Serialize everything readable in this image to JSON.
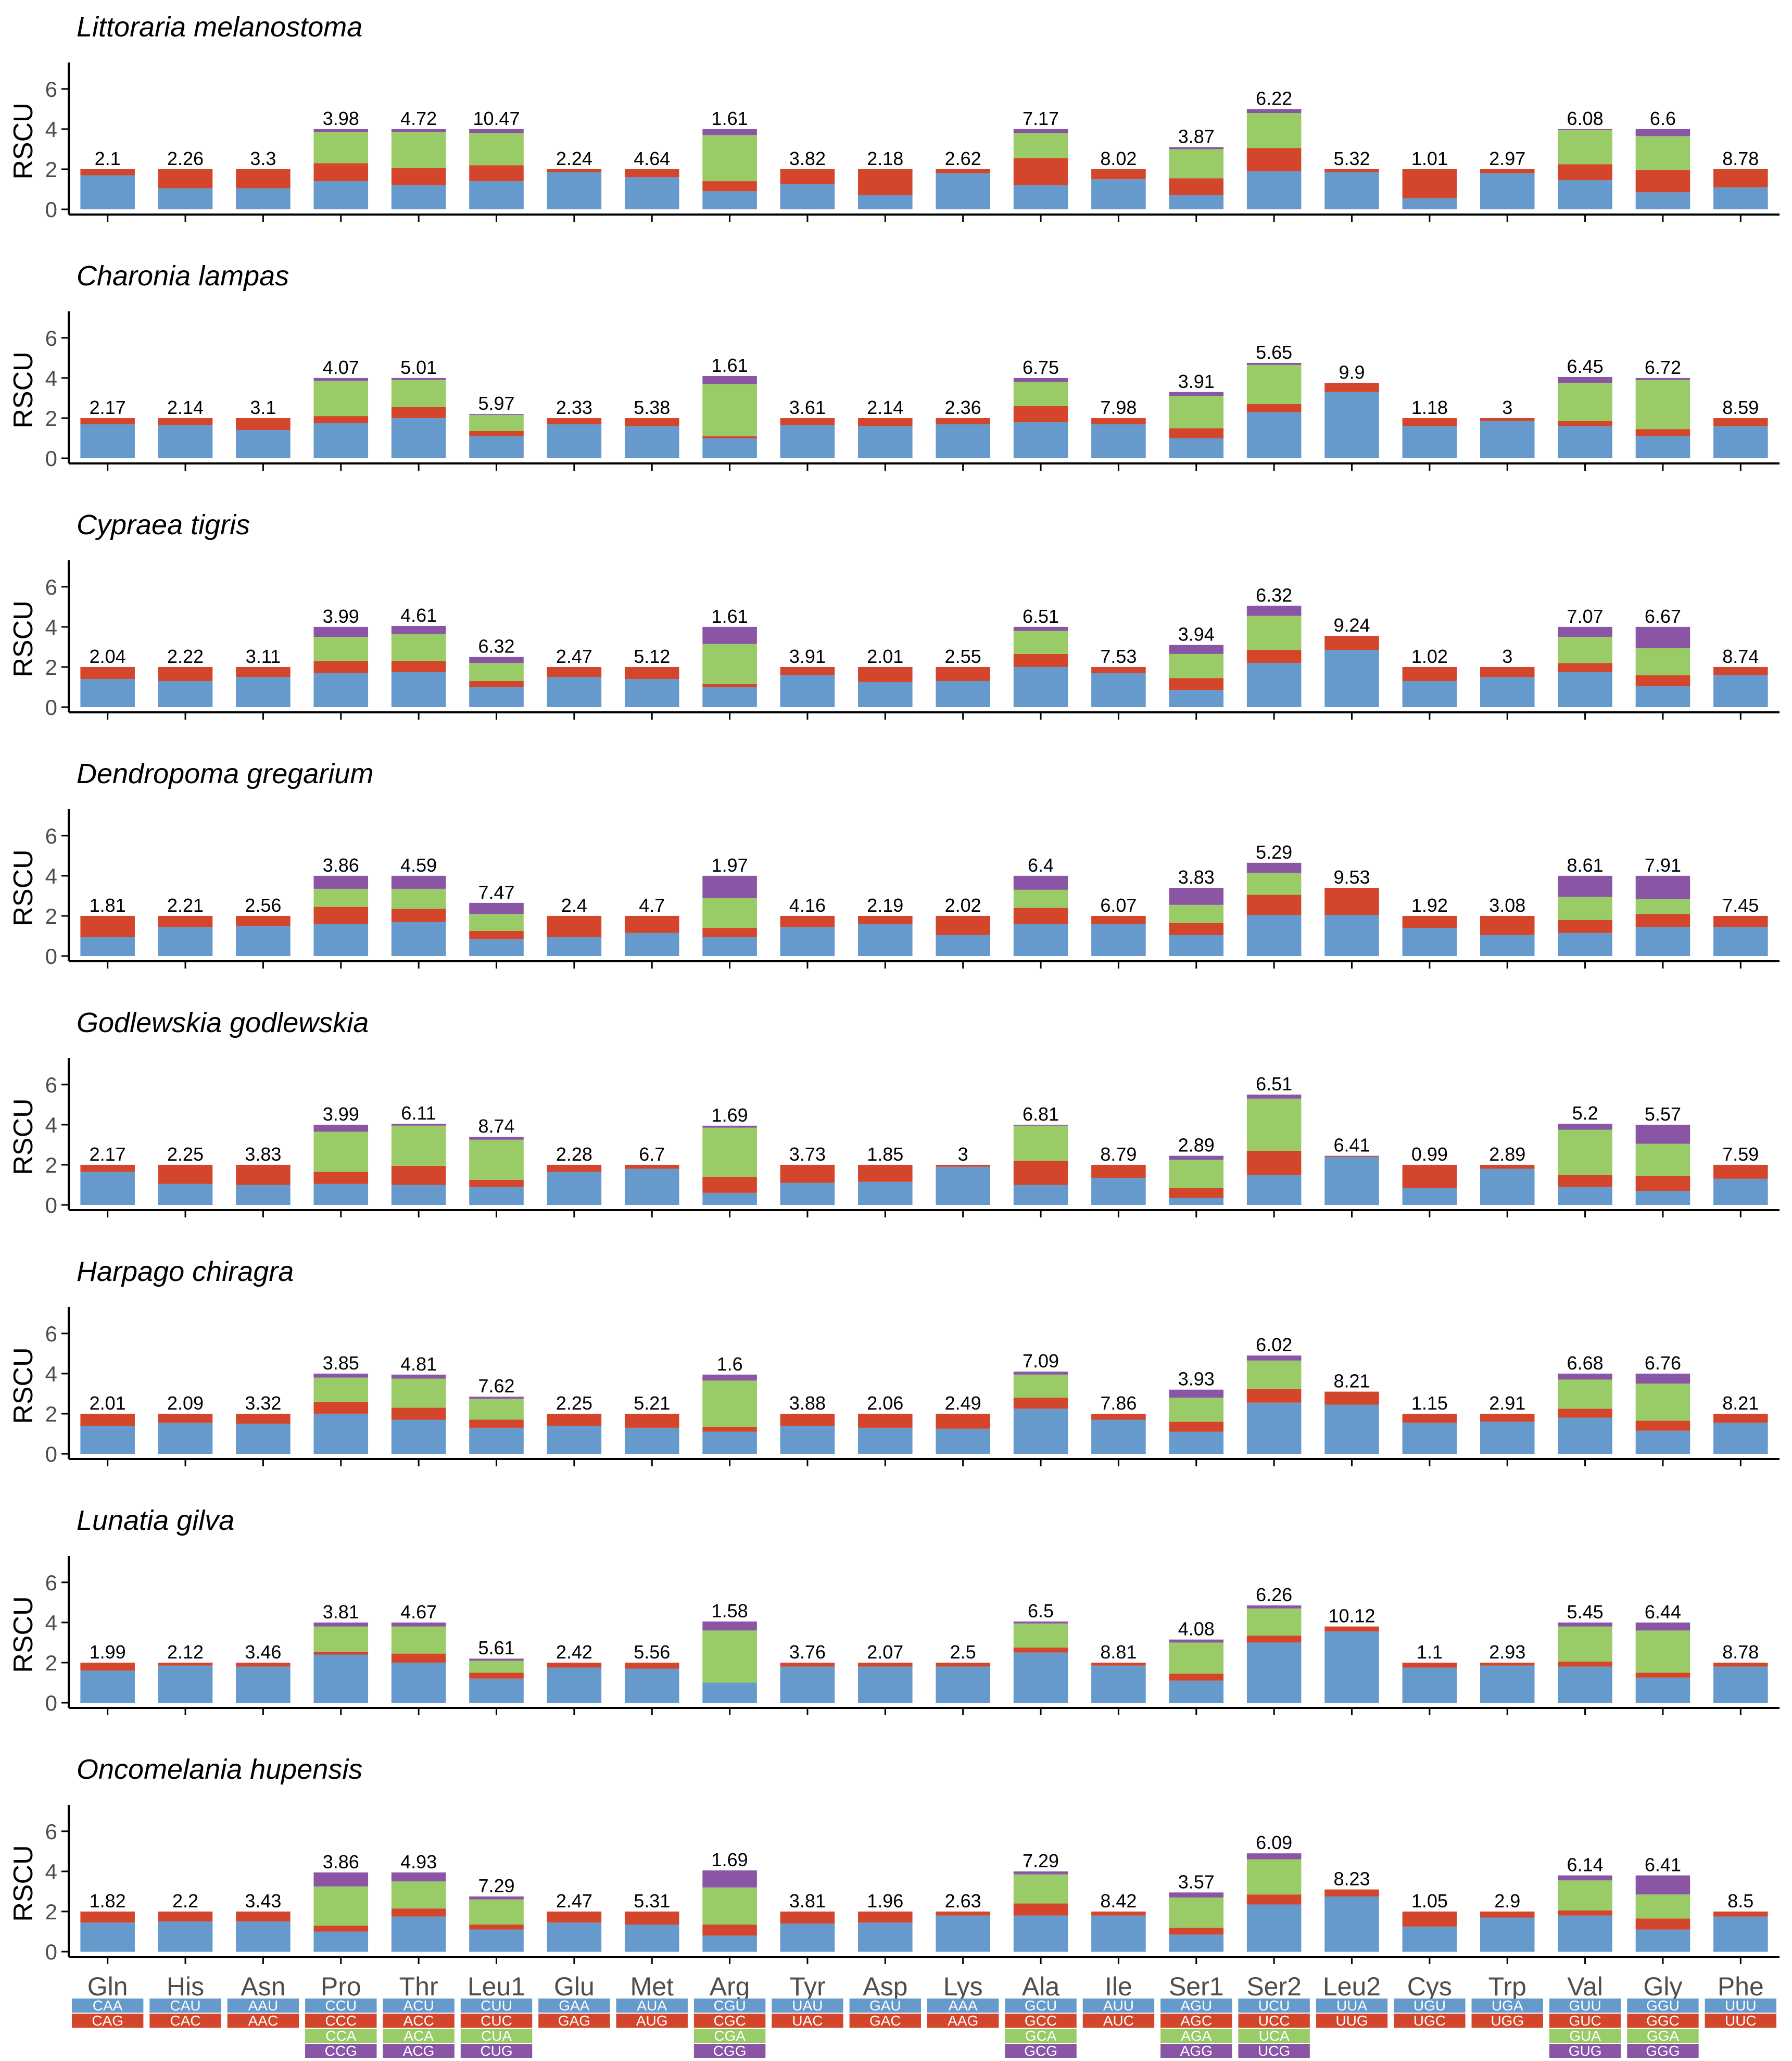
{
  "colors": {
    "codon1": "#6699cc",
    "codon2": "#d4462b",
    "codon3": "#99cc66",
    "codon4": "#8a55a5",
    "axis": "#000000",
    "text": "#000000",
    "codon_text": "#ffffff"
  },
  "chart_data": {
    "type": "bar",
    "stacked": true,
    "ylabel": "RSCU",
    "ylim": [
      0,
      6.8
    ],
    "yticks": [
      0,
      2,
      4,
      6
    ],
    "grid": false,
    "categories": [
      "Gln",
      "His",
      "Asn",
      "Pro",
      "Thr",
      "Leu1",
      "Glu",
      "Met",
      "Arg",
      "Tyr",
      "Asp",
      "Lys",
      "Ala",
      "Ile",
      "Ser1",
      "Ser2",
      "Leu2",
      "Cys",
      "Trp",
      "Val",
      "Gly",
      "Phe"
    ],
    "codons": [
      [
        "CAA",
        "CAG"
      ],
      [
        "CAU",
        "CAC"
      ],
      [
        "AAU",
        "AAC"
      ],
      [
        "CCU",
        "CCC",
        "CCA",
        "CCG"
      ],
      [
        "ACU",
        "ACC",
        "ACA",
        "ACG"
      ],
      [
        "CUU",
        "CUC",
        "CUA",
        "CUG"
      ],
      [
        "GAA",
        "GAG"
      ],
      [
        "AUA",
        "AUG"
      ],
      [
        "CGU",
        "CGC",
        "CGA",
        "CGG"
      ],
      [
        "UAU",
        "UAC"
      ],
      [
        "GAU",
        "GAC"
      ],
      [
        "AAA",
        "AAG"
      ],
      [
        "GCU",
        "GCC",
        "GCA",
        "GCG"
      ],
      [
        "AUU",
        "AUC"
      ],
      [
        "AGU",
        "AGC",
        "AGA",
        "AGG"
      ],
      [
        "UCU",
        "UCC",
        "UCA",
        "UCG"
      ],
      [
        "UUA",
        "UUG"
      ],
      [
        "UGU",
        "UGC"
      ],
      [
        "UGA",
        "UGG"
      ],
      [
        "GUU",
        "GUC",
        "GUA",
        "GUG"
      ],
      [
        "GGU",
        "GGC",
        "GGA",
        "GGG"
      ],
      [
        "UUU",
        "UUC"
      ]
    ],
    "panels": [
      {
        "species": "Littoraria melanostoma",
        "labels": [
          "2.1",
          "2.26",
          "3.3",
          "3.98",
          "4.72",
          "10.47",
          "2.24",
          "4.64",
          "1.61",
          "3.82",
          "2.18",
          "2.62",
          "7.17",
          "8.02",
          "3.87",
          "6.22",
          "5.32",
          "1.01",
          "2.97",
          "6.08",
          "6.6",
          "8.78"
        ],
        "stacks": [
          [
            1.7,
            0.3
          ],
          [
            1.05,
            0.95
          ],
          [
            1.05,
            0.95
          ],
          [
            1.4,
            0.9,
            1.55,
            0.15
          ],
          [
            1.2,
            0.85,
            1.8,
            0.15
          ],
          [
            1.4,
            0.8,
            1.6,
            0.2
          ],
          [
            1.85,
            0.15
          ],
          [
            1.6,
            0.4
          ],
          [
            0.9,
            0.5,
            2.3,
            0.3
          ],
          [
            1.25,
            0.75
          ],
          [
            0.7,
            1.3
          ],
          [
            1.8,
            0.2
          ],
          [
            1.2,
            1.35,
            1.25,
            0.2
          ],
          [
            1.5,
            0.5
          ],
          [
            0.7,
            0.85,
            1.45,
            0.1
          ],
          [
            1.9,
            1.15,
            1.75,
            0.2
          ],
          [
            1.85,
            0.15
          ],
          [
            0.55,
            1.45
          ],
          [
            1.8,
            0.2
          ],
          [
            1.45,
            0.8,
            1.7,
            0.05
          ],
          [
            0.85,
            1.1,
            1.7,
            0.35
          ],
          [
            1.1,
            0.9
          ]
        ]
      },
      {
        "species": "Charonia lampas",
        "labels": [
          "2.17",
          "2.14",
          "3.1",
          "4.07",
          "5.01",
          "5.97",
          "2.33",
          "5.38",
          "1.61",
          "3.61",
          "2.14",
          "2.36",
          "6.75",
          "7.98",
          "3.91",
          "5.65",
          "9.9",
          "1.18",
          "3",
          "6.45",
          "6.72",
          "8.59"
        ],
        "stacks": [
          [
            1.7,
            0.3
          ],
          [
            1.65,
            0.35
          ],
          [
            1.4,
            0.6
          ],
          [
            1.75,
            0.35,
            1.75,
            0.15
          ],
          [
            2.0,
            0.55,
            1.35,
            0.1
          ],
          [
            1.1,
            0.25,
            0.8,
            0.05
          ],
          [
            1.7,
            0.3
          ],
          [
            1.6,
            0.4
          ],
          [
            1.0,
            0.1,
            2.6,
            0.4
          ],
          [
            1.65,
            0.35
          ],
          [
            1.6,
            0.4
          ],
          [
            1.7,
            0.3
          ],
          [
            1.8,
            0.8,
            1.2,
            0.2
          ],
          [
            1.7,
            0.3
          ],
          [
            1.0,
            0.5,
            1.6,
            0.2
          ],
          [
            2.3,
            0.4,
            1.95,
            0.1
          ],
          [
            3.3,
            0.45
          ],
          [
            1.6,
            0.4
          ],
          [
            1.85,
            0.15
          ],
          [
            1.6,
            0.25,
            1.9,
            0.3
          ],
          [
            1.1,
            0.35,
            2.45,
            0.1
          ],
          [
            1.6,
            0.4
          ]
        ]
      },
      {
        "species": "Cypraea tigris",
        "labels": [
          "2.04",
          "2.22",
          "3.11",
          "3.99",
          "4.61",
          "6.32",
          "2.47",
          "5.12",
          "1.61",
          "3.91",
          "2.01",
          "2.55",
          "6.51",
          "7.53",
          "3.94",
          "6.32",
          "9.24",
          "1.02",
          "3",
          "7.07",
          "6.67",
          "8.74"
        ],
        "stacks": [
          [
            1.4,
            0.6
          ],
          [
            1.3,
            0.7
          ],
          [
            1.5,
            0.5
          ],
          [
            1.7,
            0.6,
            1.2,
            0.5
          ],
          [
            1.75,
            0.55,
            1.35,
            0.4
          ],
          [
            1.0,
            0.3,
            0.9,
            0.3
          ],
          [
            1.5,
            0.5
          ],
          [
            1.4,
            0.6
          ],
          [
            1.0,
            0.15,
            2.0,
            0.85
          ],
          [
            1.6,
            0.4
          ],
          [
            1.25,
            0.75
          ],
          [
            1.3,
            0.7
          ],
          [
            2.0,
            0.65,
            1.15,
            0.2
          ],
          [
            1.7,
            0.3
          ],
          [
            0.85,
            0.6,
            1.2,
            0.45
          ],
          [
            2.2,
            0.65,
            1.7,
            0.5
          ],
          [
            2.85,
            0.7
          ],
          [
            1.3,
            0.7
          ],
          [
            1.5,
            0.5
          ],
          [
            1.75,
            0.45,
            1.3,
            0.5
          ],
          [
            1.05,
            0.55,
            1.35,
            1.05
          ],
          [
            1.6,
            0.4
          ]
        ]
      },
      {
        "species": "Dendropoma gregarium",
        "labels": [
          "1.81",
          "2.21",
          "2.56",
          "3.86",
          "4.59",
          "7.47",
          "2.4",
          "4.7",
          "1.97",
          "4.16",
          "2.19",
          "2.02",
          "6.4",
          "6.07",
          "3.83",
          "5.29",
          "9.53",
          "1.92",
          "3.08",
          "8.61",
          "7.91",
          "7.45"
        ],
        "stacks": [
          [
            0.95,
            1.05
          ],
          [
            1.45,
            0.55
          ],
          [
            1.5,
            0.5
          ],
          [
            1.6,
            0.85,
            0.9,
            0.65
          ],
          [
            1.7,
            0.65,
            1.0,
            0.65
          ],
          [
            0.85,
            0.4,
            0.85,
            0.55
          ],
          [
            0.95,
            1.05
          ],
          [
            1.15,
            0.85
          ],
          [
            0.95,
            0.45,
            1.5,
            1.1
          ],
          [
            1.45,
            0.55
          ],
          [
            1.6,
            0.4
          ],
          [
            1.05,
            0.95
          ],
          [
            1.6,
            0.8,
            0.9,
            0.7
          ],
          [
            1.6,
            0.4
          ],
          [
            1.05,
            0.6,
            0.9,
            0.85
          ],
          [
            2.05,
            1.0,
            1.1,
            0.5
          ],
          [
            2.05,
            1.35
          ],
          [
            1.4,
            0.6
          ],
          [
            1.05,
            0.95
          ],
          [
            1.15,
            0.65,
            1.15,
            1.05
          ],
          [
            1.45,
            0.65,
            0.75,
            1.15
          ],
          [
            1.45,
            0.55
          ]
        ]
      },
      {
        "species": "Godlewskia godlewskia",
        "labels": [
          "2.17",
          "2.25",
          "3.83",
          "3.99",
          "6.11",
          "8.74",
          "2.28",
          "6.7",
          "1.69",
          "3.73",
          "1.85",
          "3",
          "6.81",
          "8.79",
          "2.89",
          "6.51",
          "6.41",
          "0.99",
          "2.89",
          "5.2",
          "5.57",
          "7.59"
        ],
        "stacks": [
          [
            1.65,
            0.35
          ],
          [
            1.05,
            0.95
          ],
          [
            1.0,
            1.0
          ],
          [
            1.05,
            0.6,
            2.0,
            0.35
          ],
          [
            1.0,
            0.95,
            2.0,
            0.1
          ],
          [
            0.9,
            0.35,
            2.0,
            0.15
          ],
          [
            1.65,
            0.35
          ],
          [
            1.8,
            0.2
          ],
          [
            0.6,
            0.8,
            2.45,
            0.1
          ],
          [
            1.1,
            0.9
          ],
          [
            1.15,
            0.85
          ],
          [
            1.9,
            0.1
          ],
          [
            1.0,
            1.2,
            1.75,
            0.05
          ],
          [
            1.35,
            0.65
          ],
          [
            0.35,
            0.5,
            1.4,
            0.2
          ],
          [
            1.5,
            1.2,
            2.6,
            0.2
          ],
          [
            2.4,
            0.05
          ],
          [
            0.85,
            1.15
          ],
          [
            1.8,
            0.2
          ],
          [
            0.9,
            0.6,
            2.25,
            0.3
          ],
          [
            0.7,
            0.75,
            1.6,
            0.95
          ],
          [
            1.3,
            0.7
          ]
        ]
      },
      {
        "species": "Harpago chiragra",
        "labels": [
          "2.01",
          "2.09",
          "3.32",
          "3.85",
          "4.81",
          "7.62",
          "2.25",
          "5.21",
          "1.6",
          "3.88",
          "2.06",
          "2.49",
          "7.09",
          "7.86",
          "3.93",
          "6.02",
          "8.21",
          "1.15",
          "2.91",
          "6.68",
          "6.76",
          "8.21"
        ],
        "stacks": [
          [
            1.4,
            0.6
          ],
          [
            1.55,
            0.45
          ],
          [
            1.5,
            0.5
          ],
          [
            2.0,
            0.6,
            1.2,
            0.2
          ],
          [
            1.7,
            0.6,
            1.45,
            0.2
          ],
          [
            1.3,
            0.4,
            1.05,
            0.1
          ],
          [
            1.4,
            0.6
          ],
          [
            1.3,
            0.7
          ],
          [
            1.1,
            0.25,
            2.3,
            0.3
          ],
          [
            1.4,
            0.6
          ],
          [
            1.3,
            0.7
          ],
          [
            1.25,
            0.75
          ],
          [
            2.25,
            0.55,
            1.15,
            0.15
          ],
          [
            1.7,
            0.3
          ],
          [
            1.1,
            0.5,
            1.2,
            0.4
          ],
          [
            2.55,
            0.7,
            1.4,
            0.25
          ],
          [
            2.45,
            0.65
          ],
          [
            1.55,
            0.45
          ],
          [
            1.6,
            0.4
          ],
          [
            1.8,
            0.45,
            1.45,
            0.3
          ],
          [
            1.15,
            0.5,
            1.85,
            0.5
          ],
          [
            1.55,
            0.45
          ]
        ]
      },
      {
        "species": "Lunatia gilva",
        "labels": [
          "1.99",
          "2.12",
          "3.46",
          "3.81",
          "4.67",
          "5.61",
          "2.42",
          "5.56",
          "1.58",
          "3.76",
          "2.07",
          "2.5",
          "6.5",
          "8.81",
          "4.08",
          "6.26",
          "10.12",
          "1.1",
          "2.93",
          "5.45",
          "6.44",
          "8.78"
        ],
        "stacks": [
          [
            1.6,
            0.4
          ],
          [
            1.85,
            0.15
          ],
          [
            1.8,
            0.2
          ],
          [
            2.4,
            0.15,
            1.25,
            0.2
          ],
          [
            2.0,
            0.45,
            1.35,
            0.2
          ],
          [
            1.2,
            0.3,
            0.6,
            0.1
          ],
          [
            1.75,
            0.25
          ],
          [
            1.7,
            0.3
          ],
          [
            1.0,
            0.0,
            2.6,
            0.45
          ],
          [
            1.8,
            0.2
          ],
          [
            1.8,
            0.2
          ],
          [
            1.8,
            0.2
          ],
          [
            2.5,
            0.25,
            1.2,
            0.1
          ],
          [
            1.85,
            0.15
          ],
          [
            1.1,
            0.35,
            1.55,
            0.15
          ],
          [
            3.0,
            0.35,
            1.35,
            0.15
          ],
          [
            3.55,
            0.25
          ],
          [
            1.75,
            0.25
          ],
          [
            1.85,
            0.15
          ],
          [
            1.8,
            0.25,
            1.75,
            0.2
          ],
          [
            1.25,
            0.25,
            2.1,
            0.4
          ],
          [
            1.8,
            0.2
          ]
        ]
      },
      {
        "species": "Oncomelania hupensis",
        "labels": [
          "1.82",
          "2.2",
          "3.43",
          "3.86",
          "4.93",
          "7.29",
          "2.47",
          "5.31",
          "1.69",
          "3.81",
          "1.96",
          "2.63",
          "7.29",
          "8.42",
          "3.57",
          "6.09",
          "8.23",
          "1.05",
          "2.9",
          "6.14",
          "6.41",
          "8.5"
        ],
        "stacks": [
          [
            1.45,
            0.55
          ],
          [
            1.5,
            0.5
          ],
          [
            1.5,
            0.5
          ],
          [
            1.0,
            0.3,
            1.95,
            0.7
          ],
          [
            1.75,
            0.4,
            1.35,
            0.45
          ],
          [
            1.1,
            0.25,
            1.25,
            0.15
          ],
          [
            1.45,
            0.55
          ],
          [
            1.35,
            0.65
          ],
          [
            0.8,
            0.55,
            1.85,
            0.85
          ],
          [
            1.4,
            0.6
          ],
          [
            1.45,
            0.55
          ],
          [
            1.8,
            0.2
          ],
          [
            1.8,
            0.6,
            1.45,
            0.15
          ],
          [
            1.8,
            0.2
          ],
          [
            0.85,
            0.35,
            1.5,
            0.25
          ],
          [
            2.35,
            0.5,
            1.75,
            0.3
          ],
          [
            2.75,
            0.35
          ],
          [
            1.25,
            0.75
          ],
          [
            1.7,
            0.3
          ],
          [
            1.8,
            0.25,
            1.5,
            0.25
          ],
          [
            1.1,
            0.55,
            1.2,
            0.95
          ],
          [
            1.75,
            0.25
          ]
        ]
      }
    ]
  }
}
